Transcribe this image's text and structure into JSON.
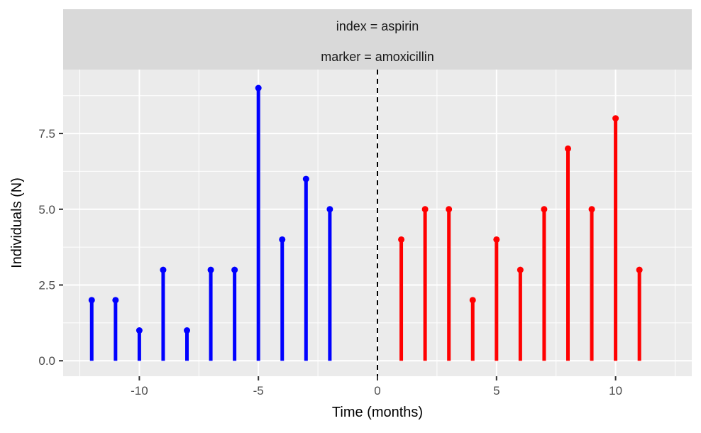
{
  "colors": {
    "background": "#FFFFFF",
    "panel_bg": "#EBEBEB",
    "strip_bg": "#D9D9D9",
    "grid": "#FFFFFF",
    "tick_text": "#4D4D4D",
    "tick_mark": "#333333",
    "axis_title": "#000000",
    "strip_text": "#1A1A1A",
    "index_series": "#0000FF",
    "marker_series": "#FF0000",
    "reference_line": "#000000"
  },
  "chart_data": {
    "type": "stem",
    "facet_labels": [
      "index = aspirin",
      "marker = amoxicillin"
    ],
    "xlabel": "Time (months)",
    "ylabel": "Individuals (N)",
    "x_ticks": {
      "values": [
        -10,
        -5,
        0,
        5,
        10
      ],
      "labels": [
        "-10",
        "-5",
        "0",
        "5",
        "10"
      ]
    },
    "y_ticks": {
      "values": [
        0,
        2.5,
        5,
        7.5
      ],
      "labels": [
        "0.0",
        "2.5",
        "5.0",
        "7.5"
      ]
    },
    "x_minor": [
      -12.5,
      -7.5,
      -2.5,
      2.5,
      7.5,
      12.5
    ],
    "y_minor": [
      1.25,
      3.75,
      6.25,
      8.75
    ],
    "xlim": [
      -13.2,
      13.2
    ],
    "ylim": [
      -0.51,
      9.61
    ],
    "grid": {
      "major": true,
      "minor": true
    },
    "legend": "none",
    "reference_line": {
      "x": 0,
      "style": "dashed"
    },
    "series": [
      {
        "name": "index",
        "label": "index = aspirin",
        "color": "#0000FF",
        "points": [
          [
            -12,
            2
          ],
          [
            -11,
            2
          ],
          [
            -10,
            1
          ],
          [
            -9,
            3
          ],
          [
            -8,
            1
          ],
          [
            -7,
            3
          ],
          [
            -6,
            3
          ],
          [
            -5,
            9
          ],
          [
            -4,
            4
          ],
          [
            -3,
            6
          ],
          [
            -2,
            5
          ]
        ]
      },
      {
        "name": "marker",
        "label": "marker = amoxicillin",
        "color": "#FF0000",
        "points": [
          [
            1,
            4
          ],
          [
            2,
            5
          ],
          [
            3,
            5
          ],
          [
            4,
            2
          ],
          [
            5,
            4
          ],
          [
            6,
            3
          ],
          [
            7,
            5
          ],
          [
            8,
            7
          ],
          [
            9,
            5
          ],
          [
            10,
            8
          ],
          [
            11,
            3
          ]
        ]
      }
    ]
  }
}
